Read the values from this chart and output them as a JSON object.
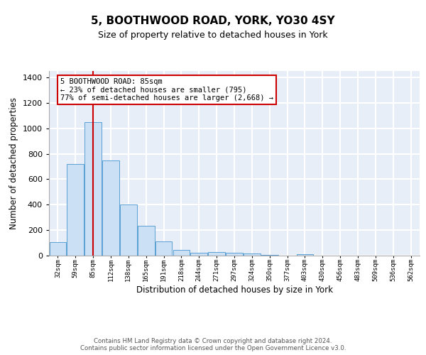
{
  "title": "5, BOOTHWOOD ROAD, YORK, YO30 4SY",
  "subtitle": "Size of property relative to detached houses in York",
  "xlabel": "Distribution of detached houses by size in York",
  "ylabel": "Number of detached properties",
  "bin_labels": [
    "32sqm",
    "59sqm",
    "85sqm",
    "112sqm",
    "138sqm",
    "165sqm",
    "191sqm",
    "218sqm",
    "244sqm",
    "271sqm",
    "297sqm",
    "324sqm",
    "350sqm",
    "377sqm",
    "403sqm",
    "430sqm",
    "456sqm",
    "483sqm",
    "509sqm",
    "536sqm",
    "562sqm"
  ],
  "bar_values": [
    105,
    720,
    1050,
    750,
    400,
    235,
    110,
    47,
    20,
    27,
    20,
    15,
    8,
    0,
    12,
    0,
    0,
    0,
    0,
    0,
    0
  ],
  "bar_color": "#cce0f5",
  "bar_edge_color": "#5a9fd4",
  "highlight_bar_index": 2,
  "highlight_color": "#cc0000",
  "annotation_text": "5 BOOTHWOOD ROAD: 85sqm\n← 23% of detached houses are smaller (795)\n77% of semi-detached houses are larger (2,668) →",
  "annotation_box_color": "#ffffff",
  "annotation_box_edge": "#cc0000",
  "ylim": [
    0,
    1450
  ],
  "yticks": [
    0,
    200,
    400,
    600,
    800,
    1000,
    1200,
    1400
  ],
  "background_color": "#e8eef8",
  "grid_color": "#ffffff",
  "footer_text": "Contains HM Land Registry data © Crown copyright and database right 2024.\nContains public sector information licensed under the Open Government Licence v3.0.",
  "title_fontsize": 11,
  "subtitle_fontsize": 9,
  "xlabel_fontsize": 8.5,
  "ylabel_fontsize": 8.5
}
